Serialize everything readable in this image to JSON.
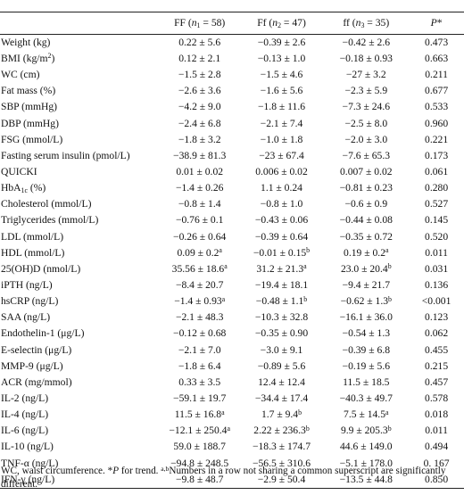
{
  "header": {
    "col_ff": "FF (<i>n</i><sub>1</sub> = 58)",
    "col_Ff": "Ff (<i>n</i><sub>2</sub> = 47)",
    "col_ffl": "ff (<i>n</i><sub>3</sub> = 35)",
    "col_p": "<i>P</i>*"
  },
  "rows": [
    [
      "Weight (kg)",
      "0.22 ± 5.6",
      "−0.39 ± 2.6",
      "−0.42 ± 2.6",
      "0.473"
    ],
    [
      "BMI (kg/m<sup>2</sup>)",
      "0.12 ± 2.1",
      "−0.13 ± 1.0",
      "−0.18 ± 0.93",
      "0.663"
    ],
    [
      "WC (cm)",
      "−1.5 ± 2.8",
      "−1.5 ± 4.6",
      "−27 ± 3.2",
      "0.211"
    ],
    [
      "Fat mass (%)",
      "−2.6 ± 3.6",
      "−1.6 ± 5.6",
      "−2.3 ± 5.9",
      "0.677"
    ],
    [
      "SBP (mmHg)",
      "−4.2 ± 9.0",
      "−1.8 ± 11.6",
      "−7.3 ± 24.6",
      "0.533"
    ],
    [
      "DBP (mmHg)",
      "−2.4 ± 6.8",
      "−2.1 ± 7.4",
      "−2.5 ± 8.0",
      "0.960"
    ],
    [
      "FSG (mmol/L)",
      "−1.8 ± 3.2",
      "−1.0 ± 1.8",
      "−2.0 ± 3.0",
      "0.221"
    ],
    [
      "Fasting serum insulin (pmol/L)",
      "−38.9 ± 81.3",
      "−23 ± 67.4",
      "−7.6 ± 65.3",
      "0.173"
    ],
    [
      "QUICKI",
      "0.01 ± 0.02",
      "0.006 ± 0.02",
      "0.007 ± 0.02",
      "0.061"
    ],
    [
      "HbA<sub>1c</sub> (%)",
      "−1.4 ± 0.26",
      "1.1 ± 0.24",
      "−0.81 ± 0.23",
      "0.280"
    ],
    [
      "Cholesterol (mmol/L)",
      "−0.8 ± 1.4",
      "−0.8 ± 1.0",
      "−0.6 ± 0.9",
      "0.527"
    ],
    [
      "Triglycerides (mmol/L)",
      "−0.76 ± 0.1",
      "−0.43 ± 0.06",
      "−0.44 ± 0.08",
      "0.145"
    ],
    [
      "LDL (mmol/L)",
      "−0.26 ± 0.64",
      "−0.39 ± 0.64",
      "−0.35 ± 0.72",
      "0.520"
    ],
    [
      "HDL (mmol/L)",
      "0.09 ± 0.2<sup>a</sup>",
      "−0.01 ± 0.15<sup>b</sup>",
      "0.19 ± 0.2<sup>a</sup>",
      "0.011"
    ],
    [
      "25(OH)D (nmol/L)",
      "35.56 ± 18.6<sup>a</sup>",
      "31.2 ± 21.3<sup>a</sup>",
      "23.0 ± 20.4<sup>b</sup>",
      "0.031"
    ],
    [
      "iPTH (ng/L)",
      "−8.4 ± 20.7",
      "−19.4 ± 18.1",
      "−9.4 ± 21.7",
      "0.136"
    ],
    [
      "hsCRP (ng/L)",
      "−1.4 ± 0.93<sup>a</sup>",
      "−0.48 ± 1.1<sup>b</sup>",
      "−0.62 ± 1.3<sup>b</sup>",
      "&lt;0.001"
    ],
    [
      "SAA (ng/L)",
      "−2.1 ± 48.3",
      "−10.3 ± 32.8",
      "−16.1 ± 36.0",
      "0.123"
    ],
    [
      "Endothelin-1 (μg/L)",
      "−0.12 ± 0.68",
      "−0.35 ± 0.90",
      "−0.54 ± 1.3",
      "0.062"
    ],
    [
      "E-selectin (μg/L)",
      "−2.1 ± 7.0",
      "−3.0 ± 9.1",
      "−0.39 ± 6.8",
      "0.455"
    ],
    [
      "MMP-9 (μg/L)",
      "−1.8 ± 6.4",
      "−0.89 ± 5.6",
      "−0.19 ± 5.6",
      "0.215"
    ],
    [
      "ACR (mg/mmol)",
      "0.33 ± 3.5",
      "12.4 ± 12.4",
      "11.5 ± 18.5",
      "0.457"
    ],
    [
      "IL-2 (ng/L)",
      "−59.1 ± 19.7",
      "−34.4 ± 17.4",
      "−40.3 ± 49.7",
      "0.578"
    ],
    [
      "IL-4 (ng/L)",
      "11.5 ± 16.8<sup>a</sup>",
      "1.7 ± 9.4<sup>b</sup>",
      "7.5 ± 14.5<sup>a</sup>",
      "0.018"
    ],
    [
      "IL-6 (ng/L)",
      "−12.1 ± 250.4<sup>a</sup>",
      "2.22 ± 236.3<sup>b</sup>",
      "9.9 ± 205.3<sup>b</sup>",
      "0.011"
    ],
    [
      "IL-10 (ng/L)",
      "59.0 ± 188.7",
      "−18.3 ± 174.7",
      "44.6 ± 149.0",
      "0.494"
    ],
    [
      "TNF-α (ng/L)",
      "−94.8 ± 248.5",
      "−56.5 ± 310.6",
      "−5.1 ± 178.0",
      "0. 167"
    ],
    [
      "IFN-γ (ng/L)",
      "−9.8 ± 48.7",
      "−2.9 ± 50.4",
      "−13.5 ± 44.8",
      "0.850"
    ]
  ],
  "footnote": "WC, waist circumference. *<i>P</i> for trend. <sup>a,b</sup>Numbers in a row not sharing a common superscript are significantly different."
}
